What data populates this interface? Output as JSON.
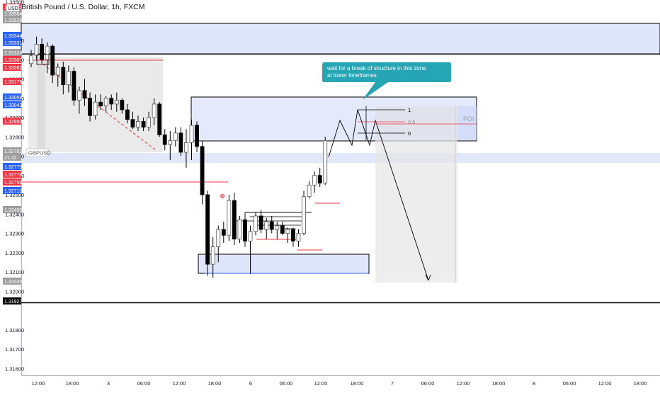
{
  "header": {
    "title": "British Pound / U.S. Dollar, 1h, FXCM",
    "currency": "USD"
  },
  "colors": {
    "up": "#ffffff",
    "down": "#000000",
    "red_label": "#f23645",
    "blue_label": "#2962ff",
    "grey_label": "#9e9e9e",
    "black_label": "#000000",
    "callout": "#26a5b5",
    "zone_fill": "#dfe6fb",
    "grey_zone": "#e6e6e6"
  },
  "price_axis": {
    "ticks": [
      "1.33500",
      "1.33300",
      "1.33200",
      "1.33100",
      "1.33000",
      "1.32900",
      "1.32800",
      "1.32700",
      "1.32600",
      "1.32500",
      "1.32400",
      "1.32300",
      "1.32200",
      "1.32100",
      "1.32000",
      "1.31800",
      "1.31700",
      "1.31600"
    ],
    "labels": [
      {
        "text": "1.33572",
        "color": "red"
      },
      {
        "text": "1.33564",
        "color": "grey"
      },
      {
        "text": "1.33528",
        "color": "grey"
      },
      {
        "text": "1.33344",
        "color": "blue"
      },
      {
        "text": "1.33331",
        "color": "blue"
      },
      {
        "text": "1.33324",
        "color": "grey"
      },
      {
        "text": "1.33307",
        "color": "red"
      },
      {
        "text": "1.33262",
        "color": "red"
      },
      {
        "text": "1.33179",
        "color": "red"
      },
      {
        "text": "1.33058",
        "color": "blue"
      },
      {
        "text": "1.33043",
        "color": "blue"
      },
      {
        "text": "1.32950",
        "color": "red"
      },
      {
        "text": "1.32782",
        "color": "grey"
      },
      {
        "text": "21:32",
        "color": "grey"
      },
      {
        "text": "1.32779",
        "color": "blue"
      },
      {
        "text": "1.32778",
        "color": "red"
      },
      {
        "text": "1.32758",
        "color": "red"
      },
      {
        "text": "1.32713",
        "color": "blue"
      },
      {
        "text": "1.32450",
        "color": "grey"
      },
      {
        "text": "1.32045",
        "color": "grey"
      },
      {
        "text": "1.31927",
        "color": "black"
      }
    ]
  },
  "time_axis": {
    "ticks": [
      "12:00",
      "18:00",
      "3",
      "06:00",
      "12:00",
      "18:00",
      "6",
      "06:00",
      "12:00",
      "18:00",
      "7",
      "06:00",
      "12:00",
      "18:00",
      "8",
      "06:00",
      "12:00",
      "18:00"
    ]
  },
  "annotations": {
    "callout_text": "wait for a break of structure in this zone at lower timeframes",
    "poi_label": "POI",
    "fib_levels": [
      "1",
      "0.5",
      "0"
    ],
    "symbol_tag": "GBPUSD"
  },
  "chart_data": {
    "type": "candlestick",
    "symbol": "British Pound / U.S. Dollar",
    "interval": "1h",
    "exchange": "FXCM",
    "ylim": [
      1.3155,
      1.3362
    ],
    "y_ticks": [
      1.335,
      1.333,
      1.332,
      1.331,
      1.33,
      1.329,
      1.328,
      1.327,
      1.326,
      1.325,
      1.324,
      1.323,
      1.322,
      1.321,
      1.32,
      1.318,
      1.317,
      1.316
    ],
    "horizontal_lines": [
      1.33348,
      1.33322,
      1.31927
    ],
    "candles": [
      {
        "o": 1.3318,
        "h": 1.3325,
        "l": 1.3316,
        "c": 1.3322
      },
      {
        "o": 1.3322,
        "h": 1.3332,
        "l": 1.332,
        "c": 1.3328
      },
      {
        "o": 1.3328,
        "h": 1.3331,
        "l": 1.3318,
        "c": 1.332
      },
      {
        "o": 1.332,
        "h": 1.3329,
        "l": 1.3313,
        "c": 1.3327
      },
      {
        "o": 1.3327,
        "h": 1.3328,
        "l": 1.3308,
        "c": 1.3312
      },
      {
        "o": 1.3312,
        "h": 1.3318,
        "l": 1.3306,
        "c": 1.3316
      },
      {
        "o": 1.3316,
        "h": 1.3319,
        "l": 1.3302,
        "c": 1.3307
      },
      {
        "o": 1.3307,
        "h": 1.3317,
        "l": 1.3303,
        "c": 1.3314
      },
      {
        "o": 1.3314,
        "h": 1.3316,
        "l": 1.3296,
        "c": 1.3299
      },
      {
        "o": 1.3299,
        "h": 1.3306,
        "l": 1.3292,
        "c": 1.3304
      },
      {
        "o": 1.3304,
        "h": 1.331,
        "l": 1.3296,
        "c": 1.33
      },
      {
        "o": 1.33,
        "h": 1.3303,
        "l": 1.3288,
        "c": 1.3291
      },
      {
        "o": 1.3291,
        "h": 1.3302,
        "l": 1.3289,
        "c": 1.3298
      },
      {
        "o": 1.3298,
        "h": 1.3302,
        "l": 1.3294,
        "c": 1.3296
      },
      {
        "o": 1.3296,
        "h": 1.3301,
        "l": 1.3293,
        "c": 1.33
      },
      {
        "o": 1.33,
        "h": 1.3302,
        "l": 1.3294,
        "c": 1.3297
      },
      {
        "o": 1.3297,
        "h": 1.3303,
        "l": 1.3293,
        "c": 1.3299
      },
      {
        "o": 1.3299,
        "h": 1.33,
        "l": 1.3292,
        "c": 1.3294
      },
      {
        "o": 1.3294,
        "h": 1.3297,
        "l": 1.3287,
        "c": 1.3289
      },
      {
        "o": 1.3289,
        "h": 1.3293,
        "l": 1.3284,
        "c": 1.3285
      },
      {
        "o": 1.3285,
        "h": 1.3291,
        "l": 1.3283,
        "c": 1.3288
      },
      {
        "o": 1.3288,
        "h": 1.329,
        "l": 1.3283,
        "c": 1.3285
      },
      {
        "o": 1.3285,
        "h": 1.3293,
        "l": 1.3283,
        "c": 1.329
      },
      {
        "o": 1.329,
        "h": 1.33,
        "l": 1.3286,
        "c": 1.3297
      },
      {
        "o": 1.3297,
        "h": 1.3298,
        "l": 1.328,
        "c": 1.3281
      },
      {
        "o": 1.3281,
        "h": 1.3284,
        "l": 1.3273,
        "c": 1.3276
      },
      {
        "o": 1.3276,
        "h": 1.3283,
        "l": 1.3268,
        "c": 1.3278
      },
      {
        "o": 1.3278,
        "h": 1.3285,
        "l": 1.3275,
        "c": 1.3282
      },
      {
        "o": 1.3282,
        "h": 1.3285,
        "l": 1.327,
        "c": 1.3272
      },
      {
        "o": 1.3272,
        "h": 1.3284,
        "l": 1.3264,
        "c": 1.3277
      },
      {
        "o": 1.3277,
        "h": 1.3289,
        "l": 1.3268,
        "c": 1.3286
      },
      {
        "o": 1.3286,
        "h": 1.3288,
        "l": 1.3272,
        "c": 1.3275
      },
      {
        "o": 1.3275,
        "h": 1.3278,
        "l": 1.3245,
        "c": 1.325
      },
      {
        "o": 1.325,
        "h": 1.3252,
        "l": 1.3208,
        "c": 1.3214
      },
      {
        "o": 1.3214,
        "h": 1.3228,
        "l": 1.3207,
        "c": 1.3223
      },
      {
        "o": 1.3223,
        "h": 1.3234,
        "l": 1.3215,
        "c": 1.3232
      },
      {
        "o": 1.3232,
        "h": 1.3236,
        "l": 1.3225,
        "c": 1.3229
      },
      {
        "o": 1.3229,
        "h": 1.325,
        "l": 1.3226,
        "c": 1.3247
      },
      {
        "o": 1.3247,
        "h": 1.3251,
        "l": 1.3224,
        "c": 1.3227
      },
      {
        "o": 1.3227,
        "h": 1.3239,
        "l": 1.3225,
        "c": 1.3237
      },
      {
        "o": 1.3237,
        "h": 1.324,
        "l": 1.3223,
        "c": 1.3226
      },
      {
        "o": 1.3226,
        "h": 1.3234,
        "l": 1.3209,
        "c": 1.3231
      },
      {
        "o": 1.3231,
        "h": 1.3241,
        "l": 1.3229,
        "c": 1.3239
      },
      {
        "o": 1.3239,
        "h": 1.3242,
        "l": 1.323,
        "c": 1.3232
      },
      {
        "o": 1.3232,
        "h": 1.3238,
        "l": 1.3227,
        "c": 1.3236
      },
      {
        "o": 1.3236,
        "h": 1.3239,
        "l": 1.323,
        "c": 1.3232
      },
      {
        "o": 1.3232,
        "h": 1.3236,
        "l": 1.3227,
        "c": 1.3234
      },
      {
        "o": 1.3234,
        "h": 1.3236,
        "l": 1.3229,
        "c": 1.323
      },
      {
        "o": 1.323,
        "h": 1.3233,
        "l": 1.3225,
        "c": 1.3232
      },
      {
        "o": 1.3232,
        "h": 1.3233,
        "l": 1.3223,
        "c": 1.3226
      },
      {
        "o": 1.3226,
        "h": 1.3232,
        "l": 1.3223,
        "c": 1.323
      },
      {
        "o": 1.323,
        "h": 1.3252,
        "l": 1.3229,
        "c": 1.3249
      },
      {
        "o": 1.3249,
        "h": 1.3257,
        "l": 1.3248,
        "c": 1.3255
      },
      {
        "o": 1.3255,
        "h": 1.3262,
        "l": 1.3251,
        "c": 1.326
      },
      {
        "o": 1.326,
        "h": 1.3264,
        "l": 1.3254,
        "c": 1.3256
      },
      {
        "o": 1.3256,
        "h": 1.328,
        "l": 1.3255,
        "c": 1.3278
      }
    ]
  }
}
